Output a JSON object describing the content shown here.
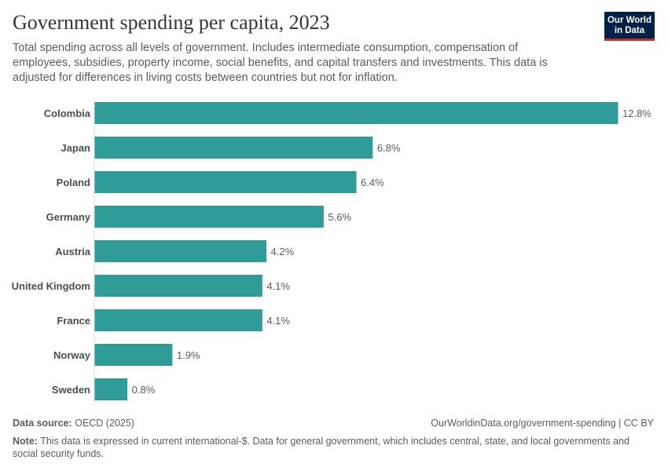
{
  "header": {
    "title": "Government spending per capita, 2023",
    "subtitle": "Total spending across all levels of government. Includes intermediate consumption, compensation of employees, subsidies, property income, social benefits, and capital transfers and investments. This data is adjusted for differences in living costs between countries but not for inflation.",
    "logo_line1": "Our World",
    "logo_line2": "in Data"
  },
  "colors": {
    "bar": "#2f9c97",
    "logo_bg": "#002147",
    "logo_accent": "#ce261e"
  },
  "chart_data": {
    "type": "bar",
    "orientation": "horizontal",
    "categories": [
      "Colombia",
      "Japan",
      "Poland",
      "Germany",
      "Austria",
      "United Kingdom",
      "France",
      "Norway",
      "Sweden"
    ],
    "values": [
      12.8,
      6.8,
      6.4,
      5.6,
      4.2,
      4.1,
      4.1,
      1.9,
      0.8
    ],
    "value_labels": [
      "12.8%",
      "6.8%",
      "6.4%",
      "5.6%",
      "4.2%",
      "4.1%",
      "4.1%",
      "1.9%",
      "0.8%"
    ],
    "xlim": [
      0,
      12.8
    ],
    "grid": false
  },
  "footer": {
    "source_label": "Data source:",
    "source_text": "OECD (2025)",
    "url_text": "OurWorldinData.org/government-spending | CC BY",
    "note_label": "Note:",
    "note_text": "This data is expressed in current international-$. Data for general government, which includes central, state, and local governments and social security funds."
  }
}
